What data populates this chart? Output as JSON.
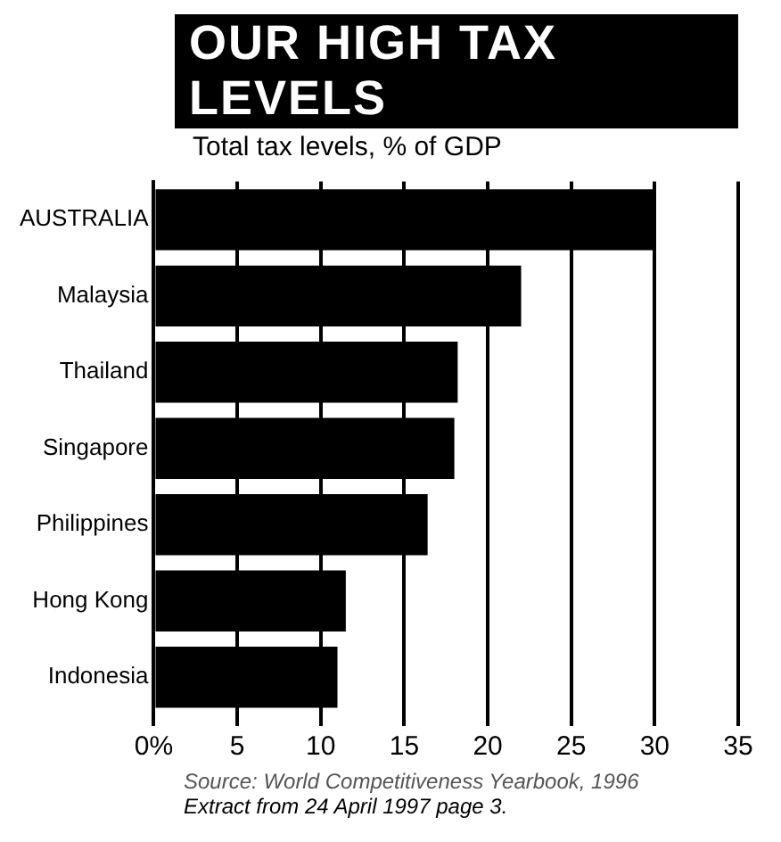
{
  "chart_data": {
    "type": "bar",
    "orientation": "horizontal",
    "title": "OUR HIGH TAX LEVELS",
    "subtitle": "Total tax levels, % of GDP",
    "categories": [
      "AUSTRALIA",
      "Malaysia",
      "Thailand",
      "Singapore",
      "Philippines",
      "Hong Kong",
      "Indonesia"
    ],
    "values": [
      30,
      22,
      18.2,
      18,
      16.4,
      11.5,
      11
    ],
    "color": "#000000",
    "xlim": [
      0,
      35
    ],
    "xticks": [
      {
        "value": 0,
        "label": "0%"
      },
      5,
      10,
      15,
      20,
      25,
      30,
      35
    ],
    "grid": "x",
    "annotations": [
      "Source: World Competitiveness Yearbook, 1996",
      "Extract from 24 April 1997 page 3."
    ]
  }
}
